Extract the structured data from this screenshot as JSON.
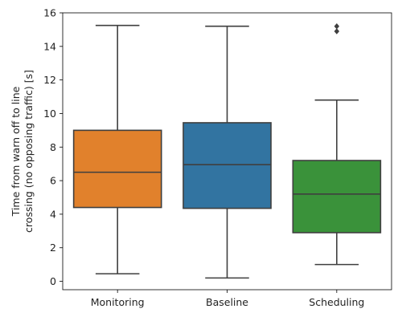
{
  "chart_data": {
    "type": "box",
    "title": "",
    "xlabel": "",
    "ylabel": [
      "Time from warn off to line",
      "crossing (no opposing traffic) [s]"
    ],
    "ylim": [
      -0.5,
      16
    ],
    "yticks": [
      0,
      2,
      4,
      6,
      8,
      10,
      12,
      14,
      16
    ],
    "grid": false,
    "legend": "none",
    "categories": [
      "Monitoring",
      "Baseline",
      "Scheduling"
    ],
    "series": [
      {
        "category": "Monitoring",
        "color": "#e1812c",
        "whisker_low": 0.45,
        "q1": 4.4,
        "median": 6.5,
        "q3": 9.0,
        "whisker_high": 15.25,
        "outliers": []
      },
      {
        "category": "Baseline",
        "color": "#3274a1",
        "whisker_low": 0.2,
        "q1": 4.35,
        "median": 6.95,
        "q3": 9.45,
        "whisker_high": 15.2,
        "outliers": []
      },
      {
        "category": "Scheduling",
        "color": "#3a923a",
        "whisker_low": 1.0,
        "q1": 2.9,
        "median": 5.2,
        "q3": 7.2,
        "whisker_high": 10.8,
        "outliers": [
          14.9,
          15.2
        ]
      }
    ]
  }
}
